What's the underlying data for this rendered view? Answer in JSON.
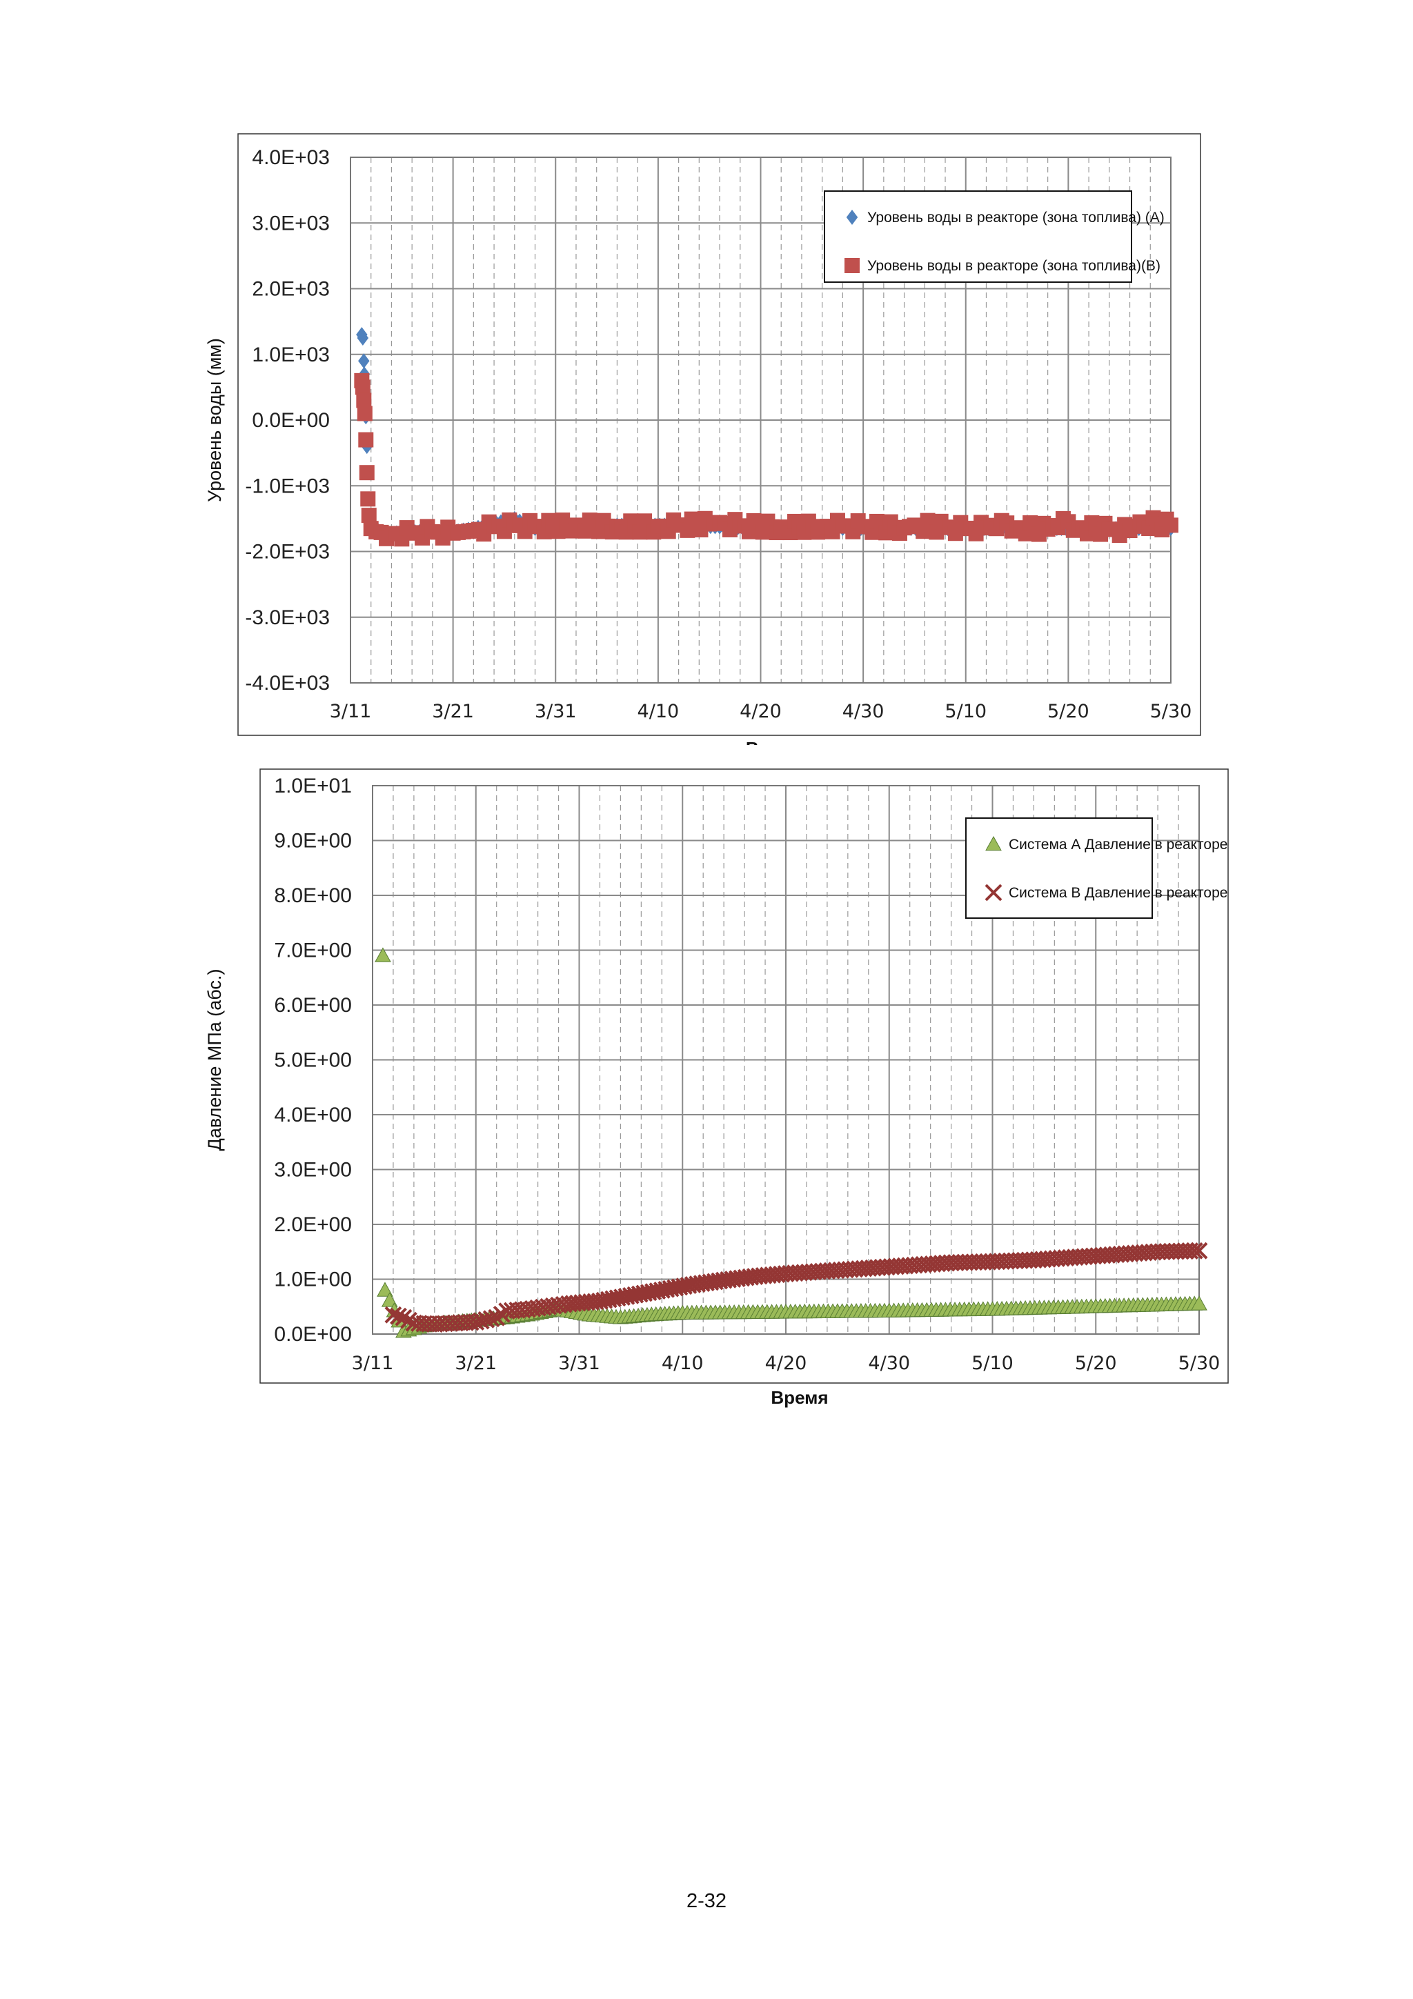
{
  "page_number": "2-32",
  "chart_data": [
    {
      "type": "scatter",
      "title": "",
      "xlabel": "Время",
      "ylabel": "Уровень воды (мм)",
      "x_tick_labels": [
        "3/11",
        "3/21",
        "3/31",
        "4/10",
        "4/20",
        "4/30",
        "5/10",
        "5/20",
        "5/30"
      ],
      "y_tick_labels": [
        "4.0E+03",
        "3.0E+03",
        "2.0E+03",
        "1.0E+03",
        "0.0E+00",
        "-1.0E+03",
        "-2.0E+03",
        "-3.0E+03",
        "-4.0E+03"
      ],
      "x_range_days_from_3_11": [
        0,
        80
      ],
      "ylim": [
        -4000,
        4000
      ],
      "grid": true,
      "legend_position": "top-right",
      "series": [
        {
          "name": "Уровень воды в реакторе (зона топлива) (A)",
          "marker": "diamond",
          "color": "#4f81bd",
          "points": [
            [
              1.1,
              1300
            ],
            [
              1.2,
              1250
            ],
            [
              1.3,
              900
            ],
            [
              1.35,
              700
            ],
            [
              1.45,
              350
            ],
            [
              1.5,
              50
            ],
            [
              1.6,
              -400
            ],
            [
              1.7,
              -1200
            ],
            [
              1.9,
              -1500
            ],
            [
              2.3,
              -1650
            ],
            [
              3.5,
              -1750
            ],
            [
              5,
              -1700
            ],
            [
              8,
              -1700
            ],
            [
              10,
              -1700
            ],
            [
              12,
              -1650
            ],
            [
              16,
              -1500
            ],
            [
              18,
              -1650
            ],
            [
              24,
              -1650
            ],
            [
              26,
              -1600
            ],
            [
              32,
              -1600
            ],
            [
              40,
              -1650
            ],
            [
              48,
              -1650
            ],
            [
              56,
              -1650
            ],
            [
              64,
              -1650
            ],
            [
              72,
              -1650
            ],
            [
              80,
              -1650
            ]
          ]
        },
        {
          "name": "Уровень воды в реакторе (зона топлива)(B)",
          "marker": "square",
          "color": "#c0504d",
          "points": [
            [
              1.1,
              600
            ],
            [
              1.2,
              500
            ],
            [
              1.3,
              300
            ],
            [
              1.4,
              100
            ],
            [
              1.5,
              -300
            ],
            [
              1.6,
              -800
            ],
            [
              1.7,
              -1200
            ],
            [
              1.8,
              -1450
            ],
            [
              2.0,
              -1650
            ],
            [
              2.5,
              -1700
            ],
            [
              4,
              -1730
            ],
            [
              6,
              -1720
            ],
            [
              8,
              -1700
            ],
            [
              10,
              -1720
            ],
            [
              11,
              -1700
            ],
            [
              12,
              -1680
            ],
            [
              14,
              -1620
            ],
            [
              16,
              -1600
            ],
            [
              18,
              -1620
            ],
            [
              22,
              -1600
            ],
            [
              26,
              -1620
            ],
            [
              30,
              -1620
            ],
            [
              32,
              -1600
            ],
            [
              35,
              -1580
            ],
            [
              36,
              -1560
            ],
            [
              38,
              -1610
            ],
            [
              42,
              -1630
            ],
            [
              46,
              -1620
            ],
            [
              48,
              -1610
            ],
            [
              50,
              -1620
            ],
            [
              54,
              -1640
            ],
            [
              55,
              -1600
            ],
            [
              58,
              -1630
            ],
            [
              60,
              -1650
            ],
            [
              62,
              -1640
            ],
            [
              63.5,
              -1530
            ],
            [
              65,
              -1640
            ],
            [
              68,
              -1660
            ],
            [
              69.5,
              -1500
            ],
            [
              71,
              -1640
            ],
            [
              74,
              -1660
            ],
            [
              76,
              -1680
            ],
            [
              77,
              -1550
            ],
            [
              80,
              -1600
            ]
          ]
        }
      ]
    },
    {
      "type": "scatter",
      "title": "",
      "xlabel": "Время",
      "ylabel": "Давление МПа (абс.)",
      "x_tick_labels": [
        "3/11",
        "3/21",
        "3/31",
        "4/10",
        "4/20",
        "4/30",
        "5/10",
        "5/20",
        "5/30"
      ],
      "y_tick_labels": [
        "1.0E+01",
        "9.0E+00",
        "8.0E+00",
        "7.0E+00",
        "6.0E+00",
        "5.0E+00",
        "4.0E+00",
        "3.0E+00",
        "2.0E+00",
        "1.0E+00",
        "0.0E+00"
      ],
      "x_range_days_from_3_11": [
        0,
        80
      ],
      "ylim": [
        0,
        10
      ],
      "grid": true,
      "legend_position": "top-right",
      "series": [
        {
          "name": "Система А Давление в реакторе",
          "marker": "triangle",
          "color": "#9bbb59",
          "points": [
            [
              1.0,
              6.9
            ],
            [
              1.2,
              0.8
            ],
            [
              3,
              0.05
            ],
            [
              5,
              0.15
            ],
            [
              7,
              0.2
            ],
            [
              10,
              0.25
            ],
            [
              13,
              0.3
            ],
            [
              15,
              0.35
            ],
            [
              18,
              0.45
            ],
            [
              21,
              0.35
            ],
            [
              24,
              0.3
            ],
            [
              27,
              0.35
            ],
            [
              30,
              0.38
            ],
            [
              40,
              0.4
            ],
            [
              50,
              0.42
            ],
            [
              60,
              0.45
            ],
            [
              70,
              0.5
            ],
            [
              80,
              0.55
            ]
          ]
        },
        {
          "name": "Система В Давление в реакторе",
          "marker": "cross",
          "color": "#943634",
          "points": [
            [
              2,
              0.35
            ],
            [
              3,
              0.3
            ],
            [
              4,
              0.2
            ],
            [
              6,
              0.18
            ],
            [
              8,
              0.2
            ],
            [
              10,
              0.22
            ],
            [
              12,
              0.3
            ],
            [
              13,
              0.42
            ],
            [
              15,
              0.45
            ],
            [
              17,
              0.5
            ],
            [
              19,
              0.55
            ],
            [
              22,
              0.6
            ],
            [
              25,
              0.7
            ],
            [
              28,
              0.8
            ],
            [
              31,
              0.9
            ],
            [
              34,
              0.98
            ],
            [
              37,
              1.05
            ],
            [
              40,
              1.1
            ],
            [
              44,
              1.15
            ],
            [
              48,
              1.2
            ],
            [
              52,
              1.25
            ],
            [
              56,
              1.3
            ],
            [
              60,
              1.32
            ],
            [
              64,
              1.35
            ],
            [
              68,
              1.4
            ],
            [
              72,
              1.45
            ],
            [
              76,
              1.5
            ],
            [
              80,
              1.52
            ]
          ]
        }
      ]
    }
  ]
}
